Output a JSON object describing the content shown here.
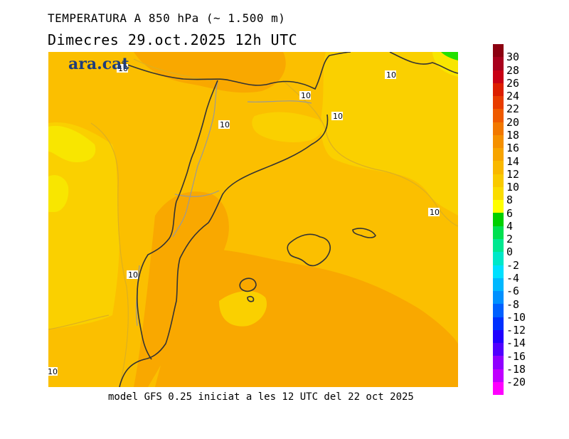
{
  "header": {
    "title": "TEMPERATURA A 850 hPa (~ 1.500 m)",
    "subtitle": "Dimecres  29.oct.2025 12h UTC"
  },
  "logo": {
    "text": "ara.cat"
  },
  "footer": {
    "text": "model GFS 0.25 iniciat a les 12 UTC del 22 oct 2025"
  },
  "map": {
    "colors": {
      "background": "#fbbf00",
      "warm": "#f9a800",
      "cool": "#fad000",
      "coolest": "#f8e600",
      "green": "#22e000",
      "coast": "#333333",
      "border": "#999999"
    },
    "contour_labels": [
      {
        "text": "10"
      },
      {
        "text": "10"
      },
      {
        "text": "10"
      },
      {
        "text": "10"
      },
      {
        "text": "10"
      },
      {
        "text": "10"
      },
      {
        "text": "10"
      },
      {
        "text": "10"
      }
    ]
  },
  "colorbar": {
    "label_values": [
      "30",
      "28",
      "26",
      "24",
      "22",
      "20",
      "18",
      "16",
      "14",
      "12",
      "10",
      "8",
      "6",
      "4",
      "2",
      "0",
      "-2",
      "-4",
      "-6",
      "-8",
      "-10",
      "-12",
      "-14",
      "-16",
      "-18",
      "-20"
    ],
    "colors": [
      "#8c0010",
      "#a8001c",
      "#c80014",
      "#dc1e00",
      "#e83c00",
      "#ef5a00",
      "#f27800",
      "#f59000",
      "#f7a400",
      "#f9b800",
      "#f9ca00",
      "#fadc00",
      "#ffff00",
      "#00d000",
      "#00e050",
      "#00e890",
      "#00e8c8",
      "#00e0ff",
      "#00b8ff",
      "#0090ff",
      "#0060ff",
      "#0030ff",
      "#2000ff",
      "#5000ff",
      "#9000ff",
      "#c000ff",
      "#ff00ff"
    ]
  }
}
